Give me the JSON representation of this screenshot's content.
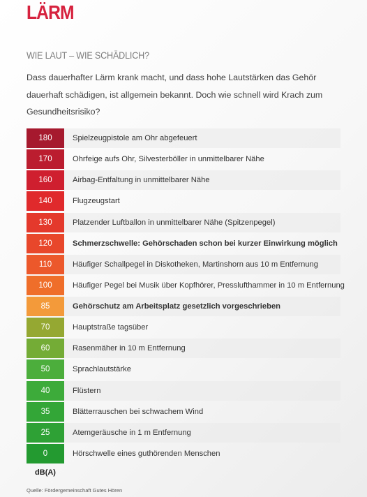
{
  "title": "LÄRM",
  "subtitle": "WIE LAUT – WIE SCHÄDLICH?",
  "intro": [
    "Dass dauerhafter Lärm krank macht, und dass hohe Lautstärken das Gehör",
    "dauerhaft schädigen, ist allgemein bekannt. Doch wie schnell wird Krach zum",
    "Gesundheitsrisiko?"
  ],
  "rows": [
    {
      "db": "180",
      "text": "Spielzeugpistole am Ohr abgefeuert",
      "color": "#a6192e",
      "bold": false
    },
    {
      "db": "170",
      "text": "Ohrfeige aufs Ohr, Silvesterböller in unmittelbarer Nähe",
      "color": "#bb1d2f",
      "bold": false
    },
    {
      "db": "160",
      "text": "Airbag-Entfaltung in unmittelbarer Nähe",
      "color": "#cf1f2f",
      "bold": false
    },
    {
      "db": "140",
      "text": "Flugzeugstart",
      "color": "#e02a2c",
      "bold": false
    },
    {
      "db": "130",
      "text": "Platzender Luftballon in unmittelbarer Nähe (Spitzenpegel)",
      "color": "#e4392c",
      "bold": false
    },
    {
      "db": "120",
      "text": "Schmerzschwelle: Gehörschaden schon bei kurzer Einwirkung möglich",
      "color": "#e8472b",
      "bold": true
    },
    {
      "db": "110",
      "text": "Häufiger Schallpegel in Diskotheken, Martinshorn aus 10 m Entfernung",
      "color": "#ec582b",
      "bold": false
    },
    {
      "db": "100",
      "text": "Häufiger Pegel bei Musik über Kopfhörer, Presslufthammer in 10 m Entfernung",
      "color": "#ef6e2a",
      "bold": false
    },
    {
      "db": "85",
      "text": "Gehörschutz am Arbeitsplatz gesetzlich vorgeschrieben",
      "color": "#f39a3a",
      "bold": true
    },
    {
      "db": "70",
      "text": "Hauptstraße tagsüber",
      "color": "#95a832",
      "bold": false
    },
    {
      "db": "60",
      "text": "Rasenmäher in 10 m Entfernung",
      "color": "#74ac36",
      "bold": false
    },
    {
      "db": "50",
      "text": "Sprachlautstärke",
      "color": "#4cae3c",
      "bold": false
    },
    {
      "db": "40",
      "text": "Flüstern",
      "color": "#3dab3a",
      "bold": false
    },
    {
      "db": "35",
      "text": "Blätterrauschen bei schwachem Wind",
      "color": "#33a637",
      "bold": false
    },
    {
      "db": "25",
      "text": "Atemgeräusche in 1 m Entfernung",
      "color": "#2ea135",
      "bold": false
    },
    {
      "db": "0",
      "text": "Hörschwelle eines guthörenden Menschen",
      "color": "#239a30",
      "bold": false
    }
  ],
  "unit": "dB(A)",
  "source": "Quelle: Fördergemeinschaft Gutes Hören"
}
